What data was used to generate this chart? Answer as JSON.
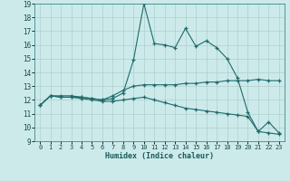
{
  "xlabel": "Humidex (Indice chaleur)",
  "background_color": "#cdeaea",
  "grid_color": "#aecece",
  "line_color": "#1e6b6b",
  "xlim": [
    -0.5,
    23.5
  ],
  "ylim": [
    9,
    19
  ],
  "xticks": [
    0,
    1,
    2,
    3,
    4,
    5,
    6,
    7,
    8,
    9,
    10,
    11,
    12,
    13,
    14,
    15,
    16,
    17,
    18,
    19,
    20,
    21,
    22,
    23
  ],
  "yticks": [
    9,
    10,
    11,
    12,
    13,
    14,
    15,
    16,
    17,
    18,
    19
  ],
  "line1_x": [
    0,
    1,
    2,
    3,
    4,
    5,
    6,
    7,
    8,
    9,
    10,
    11,
    12,
    13,
    14,
    15,
    16,
    17,
    18,
    19,
    20,
    21,
    22,
    23
  ],
  "line1_y": [
    11.6,
    12.3,
    12.3,
    12.3,
    12.2,
    12.1,
    12.0,
    12.1,
    12.5,
    14.9,
    19.0,
    16.1,
    16.0,
    15.8,
    17.2,
    15.9,
    16.3,
    15.8,
    15.0,
    13.6,
    11.1,
    9.7,
    10.4,
    9.6
  ],
  "line2_x": [
    0,
    1,
    2,
    3,
    4,
    5,
    6,
    7,
    8,
    9,
    10,
    11,
    12,
    13,
    14,
    15,
    16,
    17,
    18,
    19,
    20,
    21,
    22,
    23
  ],
  "line2_y": [
    11.6,
    12.3,
    12.2,
    12.2,
    12.2,
    12.1,
    12.0,
    12.3,
    12.7,
    13.0,
    13.1,
    13.1,
    13.1,
    13.1,
    13.2,
    13.2,
    13.3,
    13.3,
    13.4,
    13.4,
    13.4,
    13.5,
    13.4,
    13.4
  ],
  "line3_x": [
    0,
    1,
    2,
    3,
    4,
    5,
    6,
    7,
    8,
    9,
    10,
    11,
    12,
    13,
    14,
    15,
    16,
    17,
    18,
    19,
    20,
    21,
    22,
    23
  ],
  "line3_y": [
    11.6,
    12.3,
    12.2,
    12.2,
    12.1,
    12.0,
    11.9,
    11.9,
    12.0,
    12.1,
    12.2,
    12.0,
    11.8,
    11.6,
    11.4,
    11.3,
    11.2,
    11.1,
    11.0,
    10.9,
    10.8,
    9.7,
    9.6,
    9.5
  ]
}
